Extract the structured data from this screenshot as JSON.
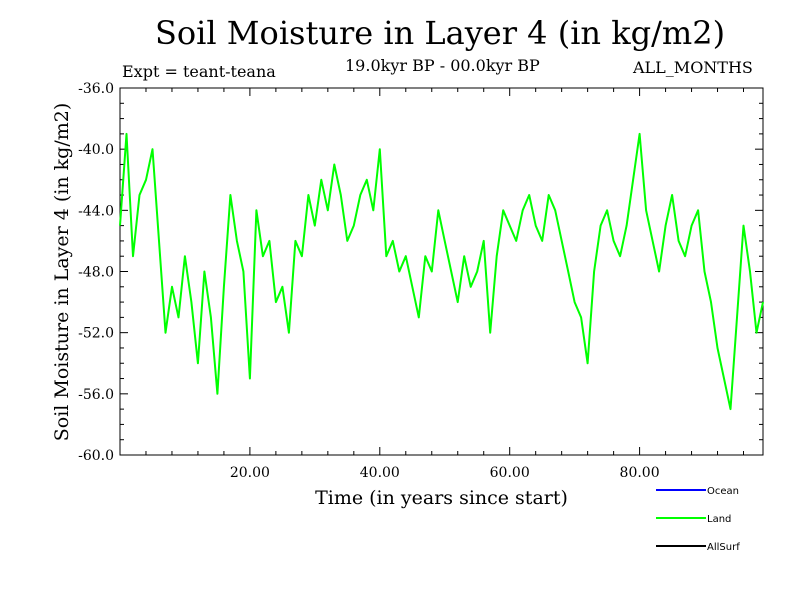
{
  "chart_data": {
    "type": "line",
    "title": "Soil Moisture in Layer 4 (in kg/m2)",
    "subtitle": "19.0kyr BP - 00.0kyr BP",
    "experiment": "Expt = teant-teana",
    "period": "ALL_MONTHS",
    "xlabel": "Time (in years since start)",
    "ylabel": "Soil Moisture in Layer 4 (in kg/m2)",
    "xlim": [
      0,
      99
    ],
    "ylim": [
      -60,
      -36
    ],
    "x_ticks": [
      20,
      40,
      60,
      80
    ],
    "x_tick_labels": [
      "20.00",
      "40.00",
      "60.00",
      "80.00"
    ],
    "y_ticks": [
      -36,
      -40,
      -44,
      -48,
      -52,
      -56,
      -60
    ],
    "y_tick_labels": [
      "-36.0",
      "-40.0",
      "-44.0",
      "-48.0",
      "-52.0",
      "-56.0",
      "-60.0"
    ],
    "legend": [
      {
        "name": "Ocean",
        "color": "#0000ff"
      },
      {
        "name": "Land",
        "color": "#00ff00"
      },
      {
        "name": "AllSurf",
        "color": "#000000"
      }
    ],
    "series": [
      {
        "name": "Land",
        "color": "#00ff00",
        "x": [
          0,
          1,
          2,
          3,
          4,
          5,
          6,
          7,
          8,
          9,
          10,
          11,
          12,
          13,
          14,
          15,
          16,
          17,
          18,
          19,
          20,
          21,
          22,
          23,
          24,
          25,
          26,
          27,
          28,
          29,
          30,
          31,
          32,
          33,
          34,
          35,
          36,
          37,
          38,
          39,
          40,
          41,
          42,
          43,
          44,
          45,
          46,
          47,
          48,
          49,
          50,
          51,
          52,
          53,
          54,
          55,
          56,
          57,
          58,
          59,
          60,
          61,
          62,
          63,
          64,
          65,
          66,
          67,
          68,
          69,
          70,
          71,
          72,
          73,
          74,
          75,
          76,
          77,
          78,
          79,
          80,
          81,
          82,
          83,
          84,
          85,
          86,
          87,
          88,
          89,
          90,
          91,
          92,
          93,
          94,
          95,
          96,
          97,
          98,
          99
        ],
        "values": [
          -45,
          -39,
          -47,
          -43,
          -42,
          -40,
          -46,
          -52,
          -49,
          -51,
          -47,
          -50,
          -54,
          -48,
          -51,
          -56,
          -49,
          -43,
          -46,
          -48,
          -55,
          -44,
          -47,
          -46,
          -50,
          -49,
          -52,
          -46,
          -47,
          -43,
          -45,
          -42,
          -44,
          -41,
          -43,
          -46,
          -45,
          -43,
          -42,
          -44,
          -40,
          -47,
          -46,
          -48,
          -47,
          -49,
          -51,
          -47,
          -48,
          -44,
          -46,
          -48,
          -50,
          -47,
          -49,
          -48,
          -46,
          -52,
          -47,
          -44,
          -45,
          -46,
          -44,
          -43,
          -45,
          -46,
          -43,
          -44,
          -46,
          -48,
          -50,
          -51,
          -54,
          -48,
          -45,
          -44,
          -46,
          -47,
          -45,
          -42,
          -39,
          -44,
          -46,
          -48,
          -45,
          -43,
          -46,
          -47,
          -45,
          -44,
          -48,
          -50,
          -53,
          -55,
          -57,
          -51,
          -45,
          -48,
          -52,
          -50
        ]
      }
    ]
  }
}
